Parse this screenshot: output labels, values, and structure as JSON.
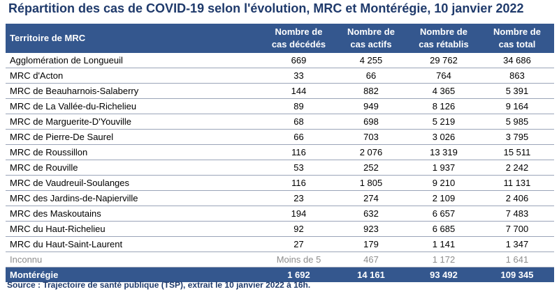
{
  "title": "Répartition des cas de COVID-19 selon l'évolution, MRC et Montérégie, 10 janvier 2022",
  "chart_data": {
    "type": "table",
    "columns": [
      "Territoire de MRC",
      "Nombre de cas décédés",
      "Nombre de cas actifs",
      "Nombre de cas rétablis",
      "Nombre de cas total"
    ],
    "header": {
      "territory": "Territoire de MRC",
      "deaths": [
        "Nombre de",
        "cas décédés"
      ],
      "active": [
        "Nombre de",
        "cas actifs"
      ],
      "recovered": [
        "Nombre de",
        "cas rétablis"
      ],
      "total": [
        "Nombre de",
        "cas total"
      ]
    },
    "rows": [
      {
        "name": "Agglomération de Longueuil",
        "deaths": "669",
        "active": "4 255",
        "recovered": "29 762",
        "total": "34 686"
      },
      {
        "name": "MRC d'Acton",
        "deaths": "33",
        "active": "66",
        "recovered": "764",
        "total": "863"
      },
      {
        "name": "MRC de Beauharnois-Salaberry",
        "deaths": "144",
        "active": "882",
        "recovered": "4 365",
        "total": "5 391"
      },
      {
        "name": "MRC de La Vallée-du-Richelieu",
        "deaths": "89",
        "active": "949",
        "recovered": "8 126",
        "total": "9 164"
      },
      {
        "name": "MRC de Marguerite-D'Youville",
        "deaths": "68",
        "active": "698",
        "recovered": "5 219",
        "total": "5 985"
      },
      {
        "name": "MRC de Pierre-De Saurel",
        "deaths": "66",
        "active": "703",
        "recovered": "3 026",
        "total": "3 795"
      },
      {
        "name": "MRC de Roussillon",
        "deaths": "116",
        "active": "2 076",
        "recovered": "13 319",
        "total": "15 511"
      },
      {
        "name": "MRC de Rouville",
        "deaths": "53",
        "active": "252",
        "recovered": "1 937",
        "total": "2 242"
      },
      {
        "name": "MRC de Vaudreuil-Soulanges",
        "deaths": "116",
        "active": "1 805",
        "recovered": "9 210",
        "total": "11 131"
      },
      {
        "name": "MRC des Jardins-de-Napierville",
        "deaths": "23",
        "active": "274",
        "recovered": "2 109",
        "total": "2 406"
      },
      {
        "name": "MRC des Maskoutains",
        "deaths": "194",
        "active": "632",
        "recovered": "6 657",
        "total": "7 483"
      },
      {
        "name": "MRC du Haut-Richelieu",
        "deaths": "92",
        "active": "923",
        "recovered": "6 685",
        "total": "7 700"
      },
      {
        "name": "MRC du Haut-Saint-Laurent",
        "deaths": "27",
        "active": "179",
        "recovered": "1 141",
        "total": "1 347"
      },
      {
        "name": "Inconnu",
        "deaths": "Moins de 5",
        "active": "467",
        "recovered": "1 172",
        "total": "1 641"
      }
    ],
    "total_row": {
      "name": "Montérégie",
      "deaths": "1 692",
      "active": "14 161",
      "recovered": "93 492",
      "total": "109 345"
    }
  },
  "source": "Source : Trajectoire de santé publique (TSP), extrait le 10 janvier 2022 à 16h.",
  "colors": {
    "header_bg": "#34578e",
    "title_text": "#1f3a6b",
    "unknown_text": "#8d8d8d",
    "row_border": "#9aa4b8"
  }
}
